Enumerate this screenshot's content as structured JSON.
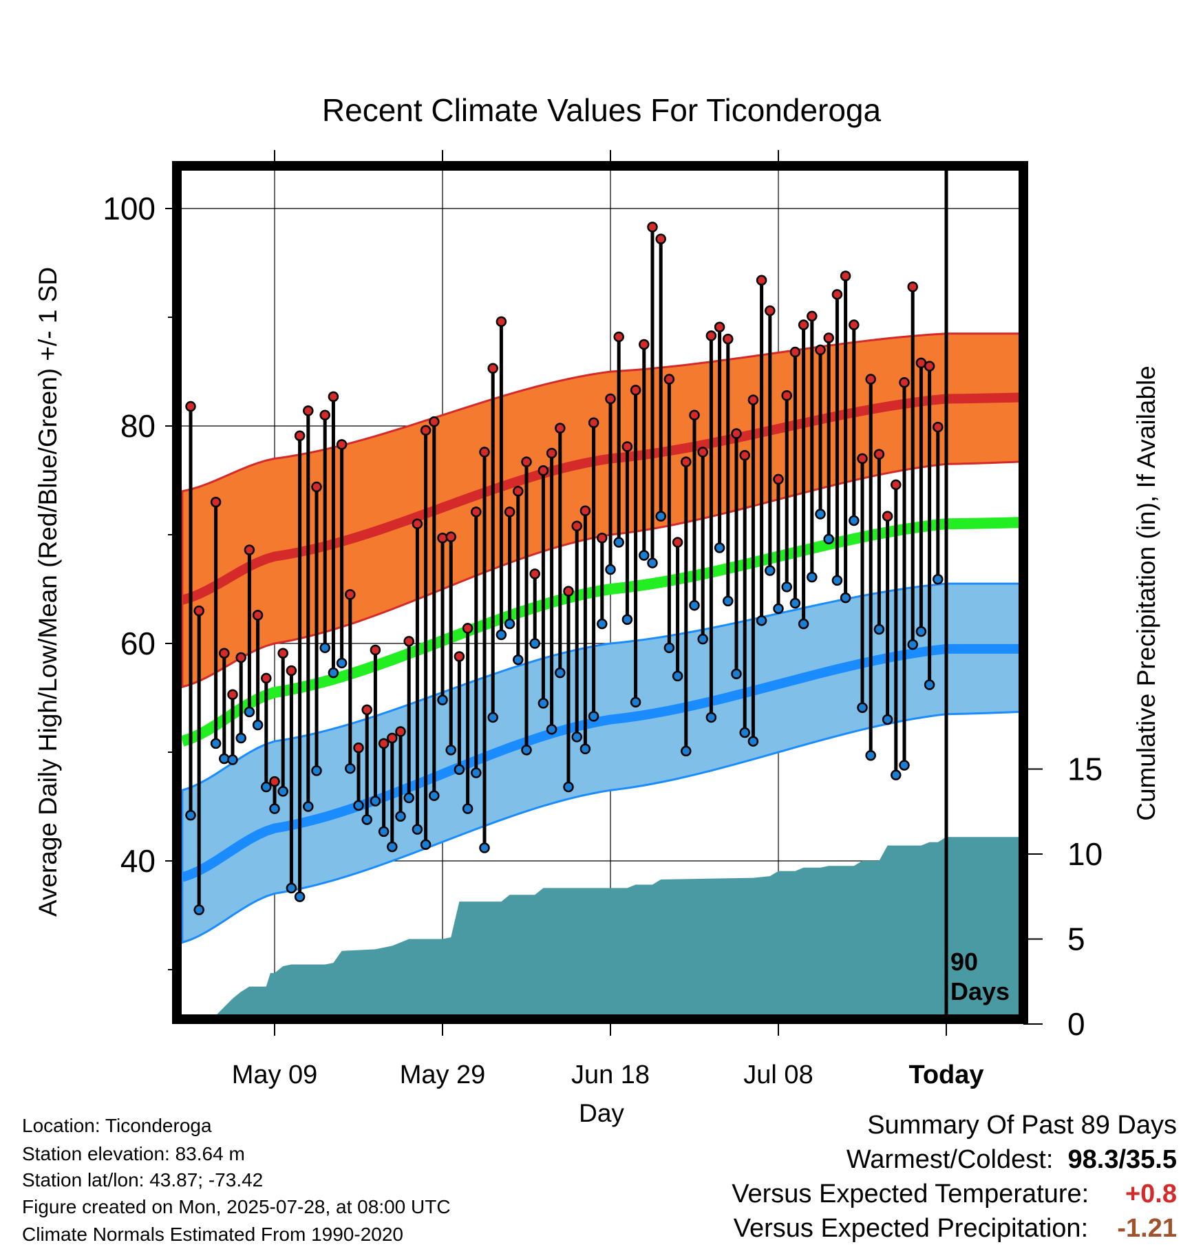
{
  "chart_data": {
    "type": "line",
    "title": "Recent Climate Values For Ticonderoga",
    "xlabel": "Day",
    "ylabel": "Average Daily High/Low/Mean (Red/Blue/Green) +/- 1 SD",
    "y2label": "Cumulative Precipitation (in), If Available",
    "ylim": [
      26,
      104
    ],
    "y2lim": [
      0,
      25
    ],
    "yticks": [
      "40",
      "60",
      "80",
      "100"
    ],
    "y2ticks": [
      "0",
      "5",
      "10",
      "15"
    ],
    "xticks": [
      "May 09",
      "May 29",
      "Jun 18",
      "Jul 08",
      "Today"
    ],
    "today_marker": {
      "label_line1": "90",
      "label_line2": "Days"
    },
    "normals": {
      "high_mean": [
        [
          -11,
          64.0
        ],
        [
          0,
          68.0
        ],
        [
          40,
          77.0
        ],
        [
          80,
          82.5
        ],
        [
          100,
          82.8
        ],
        [
          109,
          81.5
        ]
      ],
      "high_upper": [
        [
          -11,
          74.0
        ],
        [
          0,
          77.0
        ],
        [
          40,
          85.0
        ],
        [
          80,
          88.5
        ],
        [
          100,
          88.5
        ],
        [
          109,
          87.5
        ]
      ],
      "high_lower": [
        [
          -11,
          56.0
        ],
        [
          0,
          60.0
        ],
        [
          40,
          70.0
        ],
        [
          80,
          76.5
        ],
        [
          100,
          77.0
        ],
        [
          109,
          76.5
        ]
      ],
      "mean": [
        [
          -11,
          51.0
        ],
        [
          0,
          55.5
        ],
        [
          40,
          65.0
        ],
        [
          80,
          71.0
        ],
        [
          100,
          71.3
        ],
        [
          109,
          70.3
        ]
      ],
      "low_mean": [
        [
          -11,
          38.5
        ],
        [
          0,
          43.0
        ],
        [
          40,
          53.0
        ],
        [
          80,
          59.5
        ],
        [
          100,
          59.5
        ],
        [
          109,
          58.8
        ]
      ],
      "low_upper": [
        [
          -11,
          46.5
        ],
        [
          0,
          51.0
        ],
        [
          40,
          60.0
        ],
        [
          80,
          65.5
        ],
        [
          100,
          65.5
        ],
        [
          109,
          64.8
        ]
      ],
      "low_lower": [
        [
          -11,
          32.5
        ],
        [
          0,
          37.0
        ],
        [
          40,
          46.5
        ],
        [
          80,
          53.5
        ],
        [
          100,
          54.0
        ],
        [
          109,
          53.5
        ]
      ]
    },
    "daily": [
      [
        -10,
        81.8,
        44.2
      ],
      [
        -9,
        63.0,
        35.5
      ],
      [
        -7,
        73.0,
        50.8
      ],
      [
        -6,
        59.1,
        49.4
      ],
      [
        -5,
        55.3,
        49.3
      ],
      [
        -4,
        58.7,
        51.3
      ],
      [
        -3,
        68.6,
        53.7
      ],
      [
        -2,
        62.6,
        52.5
      ],
      [
        -1,
        56.8,
        46.8
      ],
      [
        0,
        47.3,
        44.8
      ],
      [
        1,
        59.1,
        46.4
      ],
      [
        2,
        57.5,
        37.5
      ],
      [
        3,
        79.1,
        36.7
      ],
      [
        4,
        81.4,
        45.0
      ],
      [
        5,
        74.4,
        48.3
      ],
      [
        6,
        81.0,
        59.6
      ],
      [
        7,
        82.7,
        57.3
      ],
      [
        8,
        78.3,
        58.2
      ],
      [
        9,
        64.5,
        48.5
      ],
      [
        10,
        50.4,
        45.1
      ],
      [
        11,
        53.9,
        43.8
      ],
      [
        12,
        59.4,
        45.5
      ],
      [
        13,
        50.8,
        42.7
      ],
      [
        14,
        51.3,
        41.3
      ],
      [
        15,
        51.9,
        44.1
      ],
      [
        16,
        60.2,
        45.8
      ],
      [
        17,
        71.0,
        42.9
      ],
      [
        18,
        79.6,
        41.5
      ],
      [
        19,
        80.4,
        46.0
      ],
      [
        20,
        69.7,
        54.8
      ],
      [
        21,
        69.8,
        50.2
      ],
      [
        22,
        58.8,
        48.4
      ],
      [
        23,
        61.4,
        44.8
      ],
      [
        24,
        72.1,
        48.1
      ],
      [
        25,
        77.6,
        41.2
      ],
      [
        26,
        85.3,
        53.2
      ],
      [
        27,
        89.6,
        60.8
      ],
      [
        28,
        72.1,
        61.8
      ],
      [
        29,
        74.0,
        58.5
      ],
      [
        30,
        76.7,
        50.2
      ],
      [
        31,
        66.4,
        60.0
      ],
      [
        32,
        75.9,
        54.5
      ],
      [
        33,
        77.5,
        52.1
      ],
      [
        34,
        79.8,
        57.3
      ],
      [
        35,
        64.8,
        46.8
      ],
      [
        36,
        70.8,
        51.4
      ],
      [
        37,
        72.2,
        50.3
      ],
      [
        38,
        80.3,
        53.3
      ],
      [
        39,
        69.7,
        61.8
      ],
      [
        40,
        82.5,
        66.8
      ],
      [
        41,
        88.2,
        69.3
      ],
      [
        42,
        78.1,
        62.2
      ],
      [
        43,
        83.3,
        54.6
      ],
      [
        44,
        87.5,
        68.1
      ],
      [
        45,
        98.3,
        67.4
      ],
      [
        46,
        97.2,
        71.7
      ],
      [
        47,
        84.3,
        59.6
      ],
      [
        48,
        69.3,
        57.0
      ],
      [
        49,
        76.7,
        50.1
      ],
      [
        50,
        81.0,
        63.5
      ],
      [
        51,
        77.6,
        60.4
      ],
      [
        52,
        88.3,
        53.2
      ],
      [
        53,
        89.1,
        68.8
      ],
      [
        54,
        88.0,
        63.9
      ],
      [
        55,
        79.3,
        57.2
      ],
      [
        56,
        77.3,
        51.8
      ],
      [
        57,
        82.4,
        51.0
      ],
      [
        58,
        93.4,
        62.1
      ],
      [
        59,
        90.6,
        66.7
      ],
      [
        60,
        75.1,
        63.2
      ],
      [
        61,
        82.8,
        65.2
      ],
      [
        62,
        86.8,
        63.7
      ],
      [
        63,
        89.3,
        61.8
      ],
      [
        64,
        90.1,
        66.1
      ],
      [
        65,
        87.0,
        71.9
      ],
      [
        66,
        88.1,
        69.6
      ],
      [
        67,
        92.1,
        65.8
      ],
      [
        68,
        93.8,
        64.2
      ],
      [
        69,
        89.3,
        71.3
      ],
      [
        70,
        77.0,
        54.1
      ],
      [
        71,
        84.3,
        49.7
      ],
      [
        72,
        77.4,
        61.3
      ],
      [
        73,
        71.7,
        53.0
      ],
      [
        74,
        74.6,
        47.9
      ],
      [
        75,
        84.0,
        48.8
      ],
      [
        76,
        92.8,
        59.9
      ],
      [
        77,
        85.8,
        61.1
      ],
      [
        78,
        85.5,
        56.2
      ],
      [
        79,
        79.9,
        65.9
      ]
    ],
    "precip_cumulative": [
      [
        -8,
        0.0
      ],
      [
        -7,
        0.5
      ],
      [
        -6,
        1.0
      ],
      [
        -5,
        1.5
      ],
      [
        -4,
        1.9
      ],
      [
        -3,
        2.2
      ],
      [
        -1,
        2.2
      ],
      [
        -0.5,
        3.0
      ],
      [
        0,
        3.0
      ],
      [
        1,
        3.4
      ],
      [
        2,
        3.5
      ],
      [
        6,
        3.5
      ],
      [
        7,
        3.6
      ],
      [
        8,
        4.3
      ],
      [
        12,
        4.4
      ],
      [
        13,
        4.5
      ],
      [
        14,
        4.6
      ],
      [
        15,
        4.8
      ],
      [
        16,
        5.0
      ],
      [
        20,
        5.0
      ],
      [
        21,
        5.1
      ],
      [
        22,
        7.2
      ],
      [
        27,
        7.2
      ],
      [
        28,
        7.6
      ],
      [
        31,
        7.6
      ],
      [
        32,
        8.0
      ],
      [
        42,
        8.0
      ],
      [
        43,
        8.2
      ],
      [
        45,
        8.2
      ],
      [
        46,
        8.5
      ],
      [
        57,
        8.6
      ],
      [
        59,
        8.7
      ],
      [
        60,
        9.0
      ],
      [
        62,
        9.0
      ],
      [
        63,
        9.2
      ],
      [
        65,
        9.2
      ],
      [
        66,
        9.3
      ],
      [
        69,
        9.3
      ],
      [
        70,
        9.6
      ],
      [
        72,
        9.6
      ],
      [
        73,
        10.5
      ],
      [
        77,
        10.5
      ],
      [
        78,
        10.7
      ],
      [
        79,
        10.7
      ],
      [
        80,
        11.0
      ],
      [
        89,
        11.0
      ]
    ]
  },
  "info": {
    "location": "Location: Ticonderoga",
    "elevation": "Station elevation: 83.64 m",
    "latlon": "Station lat/lon: 43.87; -73.42",
    "created": "Figure created on Mon, 2025-07-28, at 08:00 UTC",
    "normals": "Climate Normals Estimated From 1990-2020"
  },
  "summary": {
    "title": "Summary Of Past 89 Days",
    "warm_cold_label": "Warmest/Coldest:",
    "warm_cold_value": "98.3/35.5",
    "temp_label": "Versus Expected Temperature:",
    "temp_value": "+0.8",
    "temp_color": "#d42a2a",
    "precip_label": "Versus Expected Precipitation:",
    "precip_value": "-1.21",
    "precip_color": "#a0522d"
  },
  "colors": {
    "high_band": "#f47a30",
    "high_line": "#d42a2a",
    "mean_line": "#22ee22",
    "low_band": "#80c0e8",
    "low_line": "#1a8cff",
    "precip": "#4a9aa4",
    "high_dot": "#d42a2a",
    "low_dot": "#1a7fd4"
  }
}
